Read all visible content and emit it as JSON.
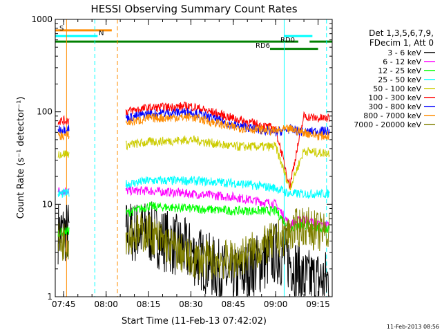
{
  "chart_data": {
    "type": "line",
    "title": "HESSI Observing Summary Count Rates",
    "xlabel": "Start Time (11-Feb-13 07:42:02)",
    "ylabel": "Count Rate (s⁻¹ detector⁻¹)",
    "ylim": [
      1,
      1000
    ],
    "yscale": "log",
    "xlim": [
      "07:42",
      "09:20"
    ],
    "x_ticks": [
      "07:45",
      "08:00",
      "08:15",
      "08:30",
      "08:45",
      "09:00",
      "09:15"
    ],
    "y_ticks": [
      "1",
      "10",
      "100",
      "1000"
    ],
    "legend_header": [
      "Det 1,3,5,6,7,9,",
      "FDecim 1, Att 0"
    ],
    "legend_position": "right",
    "footer_timestamp": "11-Feb-2013 08:56",
    "x": [
      "07:45",
      "08:05",
      "08:15",
      "08:30",
      "08:45",
      "09:00",
      "09:05",
      "09:10",
      "09:15"
    ],
    "series": [
      {
        "name": "3 - 6 keV",
        "color": "#000000",
        "values": [
          null,
          null,
          5,
          3,
          1.5,
          3,
          2.5,
          1.5,
          1.5
        ]
      },
      {
        "name": "6 - 12 keV",
        "color": "#ff00ff",
        "values": [
          null,
          null,
          14,
          13,
          12,
          10,
          6,
          7,
          6
        ]
      },
      {
        "name": "12 - 25 keV",
        "color": "#00ff00",
        "values": [
          5,
          null,
          9.5,
          9,
          8.5,
          8.5,
          5.5,
          6,
          5.5
        ]
      },
      {
        "name": "25 - 50 keV",
        "color": "#00ffff",
        "values": [
          13,
          null,
          18,
          18,
          17,
          15,
          13,
          13,
          13
        ]
      },
      {
        "name": "50 - 100 keV",
        "color": "#cccc00",
        "values": [
          35,
          null,
          47,
          50,
          42,
          42,
          15,
          38,
          36
        ]
      },
      {
        "name": "100 - 300 keV",
        "color": "#ff0000",
        "values": [
          80,
          null,
          110,
          115,
          85,
          65,
          16,
          90,
          85
        ]
      },
      {
        "name": "300 - 800 keV",
        "color": "#0000ff",
        "values": [
          65,
          null,
          95,
          100,
          72,
          60,
          65,
          60,
          62
        ]
      },
      {
        "name": "800 - 7000 keV",
        "color": "#ff8c00",
        "values": [
          55,
          null,
          85,
          88,
          68,
          62,
          65,
          60,
          55
        ]
      },
      {
        "name": "7000 - 20000 keV",
        "color": "#808000",
        "values": [
          4,
          null,
          5,
          2.5,
          2.5,
          4,
          5,
          6,
          5
        ]
      }
    ],
    "annotations": [
      {
        "label": "S",
        "color": "#ff8c00"
      },
      {
        "label": "N",
        "color": "#00ffff"
      },
      {
        "label": "RD0",
        "color": "#008000"
      },
      {
        "label": "RD6",
        "color": "#008000"
      }
    ]
  }
}
